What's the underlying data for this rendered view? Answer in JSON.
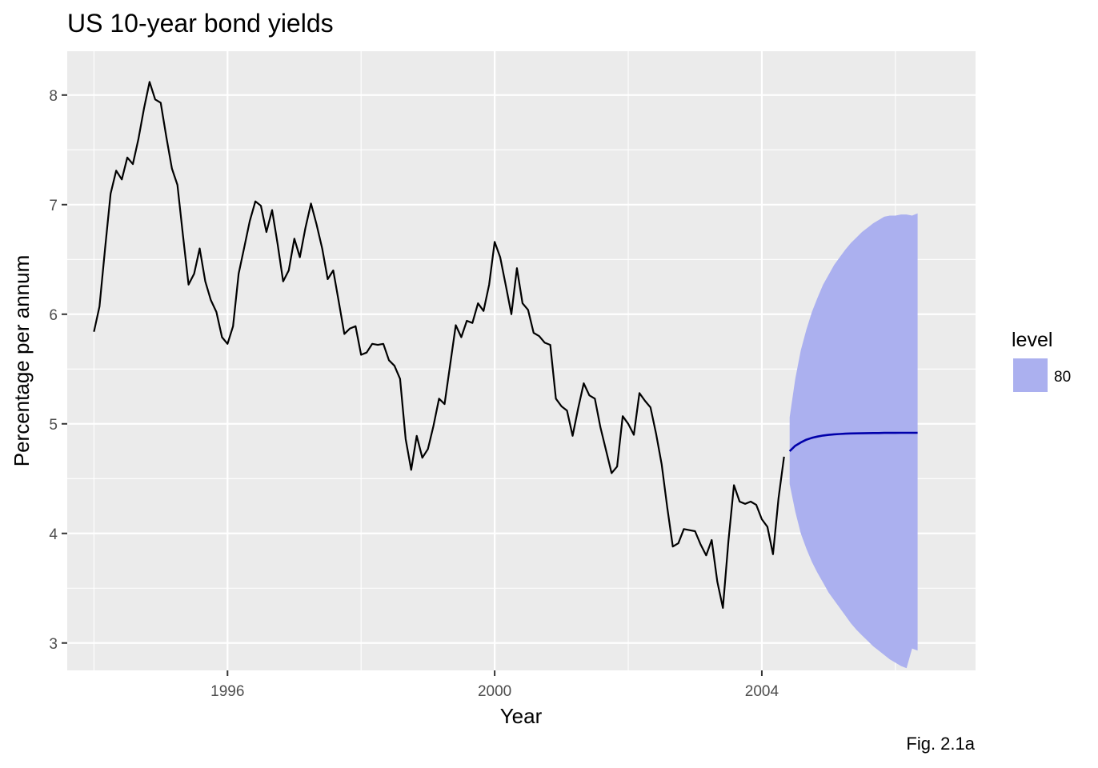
{
  "chart_data": {
    "type": "line",
    "title": "US 10-year bond yields",
    "xlabel": "Year",
    "ylabel": "Percentage per annum",
    "caption": "Fig. 2.1a",
    "xlim": [
      1993.6,
      2007.2
    ],
    "ylim": [
      2.75,
      8.4
    ],
    "x_ticks": [
      1996,
      2000,
      2004
    ],
    "x_tick_labels": [
      "1996",
      "2000",
      "2004"
    ],
    "y_ticks": [
      3,
      4,
      5,
      6,
      7,
      8
    ],
    "y_tick_labels": [
      "3",
      "4",
      "5",
      "6",
      "7",
      "8"
    ],
    "grid": true,
    "legend": {
      "title": "level",
      "position": "right",
      "items": [
        {
          "label": "80",
          "color": "#abb0ef"
        }
      ]
    },
    "colors": {
      "panel": "#ebebeb",
      "grid": "#ffffff",
      "series": "#000000",
      "forecast": "#0000aa",
      "interval": "#abb0ef"
    },
    "series": [
      {
        "x": [
          1994.0,
          1994.083,
          1994.167,
          1994.25,
          1994.333,
          1994.417,
          1994.5,
          1994.583,
          1994.667,
          1994.75,
          1994.833,
          1994.917,
          1995.0,
          1995.083,
          1995.167,
          1995.25,
          1995.333,
          1995.417,
          1995.5,
          1995.583,
          1995.667,
          1995.75,
          1995.833,
          1995.917,
          1996.0,
          1996.083,
          1996.167,
          1996.25,
          1996.333,
          1996.417,
          1996.5,
          1996.583,
          1996.667,
          1996.75,
          1996.833,
          1996.917,
          1997.0,
          1997.083,
          1997.167,
          1997.25,
          1997.333,
          1997.417,
          1997.5,
          1997.583,
          1997.667,
          1997.75,
          1997.833,
          1997.917,
          1998.0,
          1998.083,
          1998.167,
          1998.25,
          1998.333,
          1998.417,
          1998.5,
          1998.583,
          1998.667,
          1998.75,
          1998.833,
          1998.917,
          1999.0,
          1999.083,
          1999.167,
          1999.25,
          1999.333,
          1999.417,
          1999.5,
          1999.583,
          1999.667,
          1999.75,
          1999.833,
          1999.917,
          2000.0,
          2000.083,
          2000.167,
          2000.25,
          2000.333,
          2000.417,
          2000.5,
          2000.583,
          2000.667,
          2000.75,
          2000.833,
          2000.917,
          2001.0,
          2001.083,
          2001.167,
          2001.25,
          2001.333,
          2001.417,
          2001.5,
          2001.583,
          2001.667,
          2001.75,
          2001.833,
          2001.917,
          2002.0,
          2002.083,
          2002.167,
          2002.25,
          2002.333,
          2002.417,
          2002.5,
          2002.583,
          2002.667,
          2002.75,
          2002.833,
          2002.917,
          2003.0,
          2003.083,
          2003.167,
          2003.25,
          2003.333,
          2003.417,
          2003.5,
          2003.583,
          2003.667,
          2003.75,
          2003.833,
          2003.917,
          2004.0,
          2004.083,
          2004.167,
          2004.25,
          2004.333
        ],
        "values": [
          5.84,
          6.07,
          6.6,
          7.1,
          7.31,
          7.23,
          7.43,
          7.37,
          7.6,
          7.88,
          8.12,
          7.96,
          7.93,
          7.62,
          7.33,
          7.18,
          6.72,
          6.27,
          6.37,
          6.6,
          6.3,
          6.13,
          6.02,
          5.79,
          5.73,
          5.89,
          6.37,
          6.61,
          6.85,
          7.03,
          6.99,
          6.75,
          6.95,
          6.64,
          6.3,
          6.4,
          6.69,
          6.52,
          6.79,
          7.01,
          6.82,
          6.6,
          6.32,
          6.4,
          6.11,
          5.82,
          5.87,
          5.89,
          5.63,
          5.65,
          5.73,
          5.72,
          5.73,
          5.58,
          5.53,
          5.41,
          4.86,
          4.58,
          4.89,
          4.69,
          4.77,
          4.98,
          5.23,
          5.18,
          5.54,
          5.9,
          5.79,
          5.94,
          5.92,
          6.1,
          6.03,
          6.27,
          6.66,
          6.52,
          6.26,
          6.0,
          6.42,
          6.1,
          6.04,
          5.83,
          5.8,
          5.74,
          5.72,
          5.23,
          5.16,
          5.12,
          4.89,
          5.14,
          5.37,
          5.26,
          5.23,
          4.97,
          4.76,
          4.55,
          4.61,
          5.07,
          5.0,
          4.9,
          5.28,
          5.21,
          5.15,
          4.91,
          4.63,
          4.24,
          3.88,
          3.91,
          4.04,
          4.03,
          4.02,
          3.9,
          3.8,
          3.94,
          3.56,
          3.32,
          3.93,
          4.44,
          4.29,
          4.27,
          4.29,
          4.26,
          4.13,
          4.06,
          3.81,
          4.32,
          4.7
        ]
      },
      {
        "x": [
          2004.417,
          2004.5,
          2004.583,
          2004.667,
          2004.75,
          2004.833,
          2004.917,
          2005.0,
          2005.083,
          2005.167,
          2005.25,
          2005.333,
          2005.417,
          2005.5,
          2005.583,
          2005.667,
          2005.75,
          2005.833,
          2005.917,
          2006.0,
          2006.083,
          2006.167,
          2006.25,
          2006.333
        ],
        "values": [
          4.75,
          4.8,
          4.83,
          4.855,
          4.872,
          4.884,
          4.893,
          4.899,
          4.904,
          4.907,
          4.91,
          4.912,
          4.913,
          4.914,
          4.915,
          4.916,
          4.916,
          4.917,
          4.917,
          4.917,
          4.918,
          4.918,
          4.918,
          4.918
        ],
        "lower": [
          4.45,
          4.2,
          4.0,
          3.86,
          3.74,
          3.64,
          3.55,
          3.46,
          3.39,
          3.32,
          3.25,
          3.18,
          3.12,
          3.07,
          3.02,
          2.97,
          2.93,
          2.89,
          2.85,
          2.82,
          2.79,
          2.77,
          2.95,
          2.93
        ],
        "upper": [
          5.06,
          5.41,
          5.67,
          5.86,
          6.02,
          6.15,
          6.27,
          6.36,
          6.45,
          6.52,
          6.59,
          6.65,
          6.7,
          6.75,
          6.79,
          6.83,
          6.86,
          6.89,
          6.9,
          6.9,
          6.91,
          6.91,
          6.9,
          6.92
        ]
      }
    ]
  }
}
